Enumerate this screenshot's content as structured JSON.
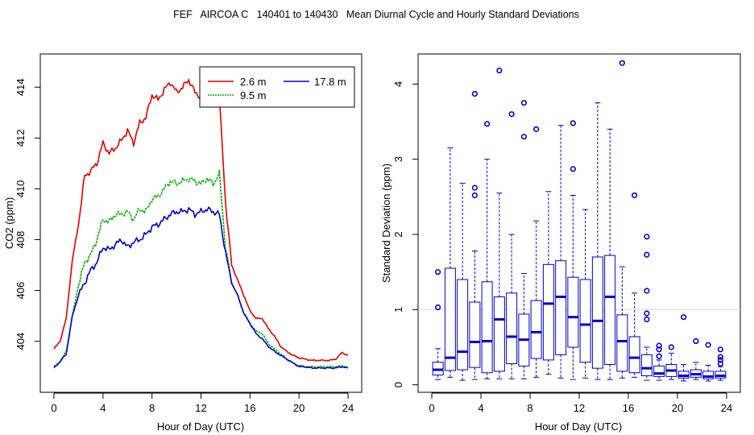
{
  "title": "FEF   AIRCOA C   140401 to 140430   Mean Diurnal Cycle and Hourly Standard Deviations",
  "colors": {
    "red": "#e00000",
    "green": "#00b000",
    "blue": "#0000c8",
    "axis": "#000000"
  },
  "chart_data": [
    {
      "type": "line",
      "xlabel": "Hour of Day (UTC)",
      "ylabel": "CO2 (ppm)",
      "xlim": [
        0,
        24
      ],
      "ylim": [
        402.5,
        414.8
      ],
      "xticks": [
        0,
        4,
        8,
        12,
        16,
        20,
        24
      ],
      "yticks": [
        404,
        406,
        408,
        410,
        412,
        414
      ],
      "legend": {
        "position": "top-right",
        "entries": [
          "2.6 m",
          "9.5 m",
          "17.8 m"
        ]
      },
      "knots": [
        0,
        0.5,
        1,
        1.5,
        2,
        2.5,
        3,
        3.5,
        4,
        4.5,
        5,
        5.5,
        6,
        6.5,
        7,
        7.5,
        8,
        8.5,
        9,
        9.5,
        10,
        10.5,
        11,
        11.5,
        12,
        12.5,
        13,
        13.5,
        14,
        14.5,
        15,
        15.5,
        16,
        16.5,
        17,
        17.5,
        18,
        18.5,
        19,
        19.5,
        20,
        20.5,
        21,
        21.5,
        22,
        22.5,
        23,
        23.5,
        24
      ],
      "series": [
        {
          "name": "2.6 m",
          "color": "#e00000",
          "values": [
            403.7,
            404.0,
            404.9,
            407.2,
            408.6,
            410.5,
            410.7,
            411.0,
            411.8,
            411.4,
            411.6,
            411.9,
            412.3,
            411.8,
            412.6,
            412.8,
            413.7,
            413.5,
            413.9,
            414.2,
            413.8,
            414.0,
            414.3,
            413.8,
            413.6,
            413.8,
            413.4,
            413.6,
            409.5,
            407.0,
            406.4,
            405.8,
            405.2,
            404.9,
            404.9,
            404.5,
            404.2,
            403.8,
            403.6,
            403.45,
            403.35,
            403.3,
            403.25,
            403.25,
            403.25,
            403.25,
            403.3,
            403.55,
            403.45
          ]
        },
        {
          "name": "9.5 m",
          "color": "#00b000",
          "values": [
            403.0,
            403.2,
            403.6,
            405.0,
            406.2,
            407.1,
            407.4,
            408.0,
            408.8,
            408.7,
            409.0,
            409.0,
            409.1,
            408.8,
            409.2,
            409.1,
            409.6,
            409.7,
            410.0,
            410.3,
            410.2,
            410.3,
            410.4,
            410.3,
            410.2,
            410.4,
            410.2,
            410.6,
            407.7,
            406.3,
            405.8,
            405.1,
            404.7,
            404.4,
            404.3,
            403.9,
            403.7,
            403.5,
            403.3,
            403.15,
            403.05,
            403.0,
            403.0,
            403.0,
            403.0,
            403.0,
            403.0,
            403.05,
            402.95
          ]
        },
        {
          "name": "17.8 m",
          "color": "#0000c8",
          "values": [
            402.95,
            403.2,
            403.5,
            405.0,
            405.8,
            406.3,
            406.8,
            407.1,
            407.7,
            407.6,
            407.8,
            408.0,
            407.7,
            407.9,
            408.0,
            408.2,
            408.5,
            408.6,
            408.8,
            409.0,
            409.1,
            409.1,
            409.2,
            409.0,
            409.1,
            409.2,
            409.1,
            409.0,
            407.5,
            406.3,
            405.8,
            405.1,
            404.7,
            404.3,
            404.1,
            403.8,
            403.6,
            403.45,
            403.3,
            403.15,
            403.0,
            403.0,
            402.95,
            402.95,
            402.95,
            402.95,
            402.95,
            403.0,
            402.95
          ]
        }
      ]
    },
    {
      "type": "box",
      "xlabel": "Hour of Day (UTC)",
      "ylabel": "Standard Deviation (ppm)",
      "xlim": [
        0,
        24
      ],
      "ylim": [
        -0.1,
        4.4
      ],
      "xticks": [
        0,
        4,
        8,
        12,
        16,
        20,
        24
      ],
      "yticks": [
        0,
        1,
        2,
        3,
        4
      ],
      "reference_line": 1,
      "boxes": [
        {
          "hour": 0.5,
          "whisker_low": 0.07,
          "q1": 0.13,
          "median": 0.2,
          "q3": 0.3,
          "whisker_high": 0.48,
          "outliers": [
            1.03,
            1.5
          ]
        },
        {
          "hour": 1.5,
          "whisker_low": 0.1,
          "q1": 0.19,
          "median": 0.36,
          "q3": 1.55,
          "whisker_high": 3.15,
          "outliers": []
        },
        {
          "hour": 2.5,
          "whisker_low": 0.06,
          "q1": 0.2,
          "median": 0.44,
          "q3": 1.4,
          "whisker_high": 2.68,
          "outliers": []
        },
        {
          "hour": 3.5,
          "whisker_low": 0.07,
          "q1": 0.23,
          "median": 0.57,
          "q3": 1.1,
          "whisker_high": 1.78,
          "outliers": [
            2.52,
            2.62,
            3.87
          ]
        },
        {
          "hour": 4.5,
          "whisker_low": 0.08,
          "q1": 0.16,
          "median": 0.58,
          "q3": 1.37,
          "whisker_high": 3.0,
          "outliers": [
            3.47
          ]
        },
        {
          "hour": 5.5,
          "whisker_low": 0.08,
          "q1": 0.18,
          "median": 0.87,
          "q3": 1.17,
          "whisker_high": 2.55,
          "outliers": [
            4.18
          ]
        },
        {
          "hour": 6.5,
          "whisker_low": 0.08,
          "q1": 0.28,
          "median": 0.64,
          "q3": 1.22,
          "whisker_high": 2.0,
          "outliers": [
            3.6
          ]
        },
        {
          "hour": 7.5,
          "whisker_low": 0.08,
          "q1": 0.25,
          "median": 0.6,
          "q3": 0.94,
          "whisker_high": 1.48,
          "outliers": [
            3.3,
            3.75
          ]
        },
        {
          "hour": 8.5,
          "whisker_low": 0.1,
          "q1": 0.35,
          "median": 0.7,
          "q3": 1.12,
          "whisker_high": 2.18,
          "outliers": [
            3.4
          ]
        },
        {
          "hour": 9.5,
          "whisker_low": 0.14,
          "q1": 0.33,
          "median": 1.08,
          "q3": 1.6,
          "whisker_high": 2.57,
          "outliers": []
        },
        {
          "hour": 10.5,
          "whisker_low": 0.09,
          "q1": 0.4,
          "median": 1.17,
          "q3": 1.65,
          "whisker_high": 3.45,
          "outliers": []
        },
        {
          "hour": 11.5,
          "whisker_low": 0.07,
          "q1": 0.5,
          "median": 0.9,
          "q3": 1.43,
          "whisker_high": 2.52,
          "outliers": [
            2.87,
            3.48
          ]
        },
        {
          "hour": 12.5,
          "whisker_low": 0.09,
          "q1": 0.3,
          "median": 0.8,
          "q3": 1.4,
          "whisker_high": 2.33,
          "outliers": []
        },
        {
          "hour": 13.5,
          "whisker_low": 0.07,
          "q1": 0.22,
          "median": 0.85,
          "q3": 1.7,
          "whisker_high": 3.75,
          "outliers": []
        },
        {
          "hour": 14.5,
          "whisker_low": 0.07,
          "q1": 0.27,
          "median": 1.17,
          "q3": 1.72,
          "whisker_high": 3.4,
          "outliers": []
        },
        {
          "hour": 15.5,
          "whisker_low": 0.09,
          "q1": 0.18,
          "median": 0.58,
          "q3": 0.93,
          "whisker_high": 1.57,
          "outliers": [
            4.28
          ]
        },
        {
          "hour": 16.5,
          "whisker_low": 0.1,
          "q1": 0.16,
          "median": 0.36,
          "q3": 0.64,
          "whisker_high": 1.22,
          "outliers": [
            2.52
          ]
        },
        {
          "hour": 17.5,
          "whisker_low": 0.06,
          "q1": 0.12,
          "median": 0.22,
          "q3": 0.4,
          "whisker_high": 0.5,
          "outliers": [
            0.87,
            0.95,
            1.25,
            1.73,
            1.97
          ]
        },
        {
          "hour": 18.5,
          "whisker_low": 0.06,
          "q1": 0.11,
          "median": 0.15,
          "q3": 0.25,
          "whisker_high": 0.33,
          "outliers": [
            0.38,
            0.47,
            0.52
          ]
        },
        {
          "hour": 19.5,
          "whisker_low": 0.07,
          "q1": 0.11,
          "median": 0.19,
          "q3": 0.27,
          "whisker_high": 0.42,
          "outliers": [
            0.5
          ]
        },
        {
          "hour": 20.5,
          "whisker_low": 0.05,
          "q1": 0.09,
          "median": 0.12,
          "q3": 0.18,
          "whisker_high": 0.27,
          "outliers": [
            0.9
          ]
        },
        {
          "hour": 21.5,
          "whisker_low": 0.07,
          "q1": 0.1,
          "median": 0.14,
          "q3": 0.2,
          "whisker_high": 0.3,
          "outliers": [
            0.58
          ]
        },
        {
          "hour": 22.5,
          "whisker_low": 0.05,
          "q1": 0.08,
          "median": 0.11,
          "q3": 0.18,
          "whisker_high": 0.26,
          "outliers": [
            0.53
          ]
        },
        {
          "hour": 23.5,
          "whisker_low": 0.06,
          "q1": 0.09,
          "median": 0.12,
          "q3": 0.18,
          "whisker_high": 0.24,
          "outliers": [
            0.28,
            0.33,
            0.37,
            0.47
          ]
        }
      ]
    }
  ]
}
